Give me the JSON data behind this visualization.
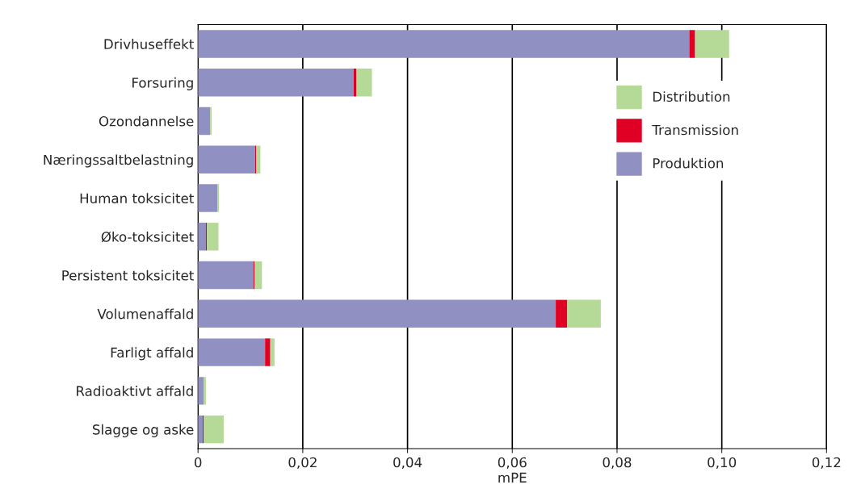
{
  "chart_data": {
    "type": "bar",
    "orientation": "horizontal",
    "stacked": true,
    "xlabel": "mPE",
    "categories": [
      "Drivhuseffekt",
      "Forsuring",
      "Ozondannelse",
      "Næringssaltbelastning",
      "Human toksicitet",
      "Øko-toksicitet",
      "Persistent toksicitet",
      "Volumenaffald",
      "Farligt affald",
      "Radioaktivt affald",
      "Slagge og aske"
    ],
    "series": [
      {
        "name": "Produktion",
        "color": "#9090c2",
        "values": [
          0.0938,
          0.0297,
          0.0023,
          0.0109,
          0.0037,
          0.0015,
          0.0106,
          0.0683,
          0.0128,
          0.0011,
          0.0009
        ]
      },
      {
        "name": "Transmission",
        "color": "#e00024",
        "values": [
          0.0011,
          0.0005,
          0,
          0.0002,
          0,
          0.0002,
          0.0002,
          0.0022,
          0.001,
          0,
          0.0002
        ]
      },
      {
        "name": "Distribution",
        "color": "#b5d996",
        "values": [
          0.0065,
          0.003,
          0.0003,
          0.0008,
          0.0003,
          0.0022,
          0.0014,
          0.0064,
          0.0008,
          0.0004,
          0.0038
        ]
      }
    ],
    "xlim": [
      0,
      0.12
    ],
    "xticks": [
      0,
      {
        "value": 0.02,
        "label": "0,02"
      },
      {
        "value": 0.04,
        "label": "0,04"
      },
      {
        "value": 0.06,
        "label": "0,06"
      },
      {
        "value": 0.08,
        "label": "0,08"
      },
      {
        "value": 0.1,
        "label": "0,10"
      },
      {
        "value": 0.12,
        "label": "0,12"
      }
    ],
    "grid": "x",
    "legend": "right"
  }
}
